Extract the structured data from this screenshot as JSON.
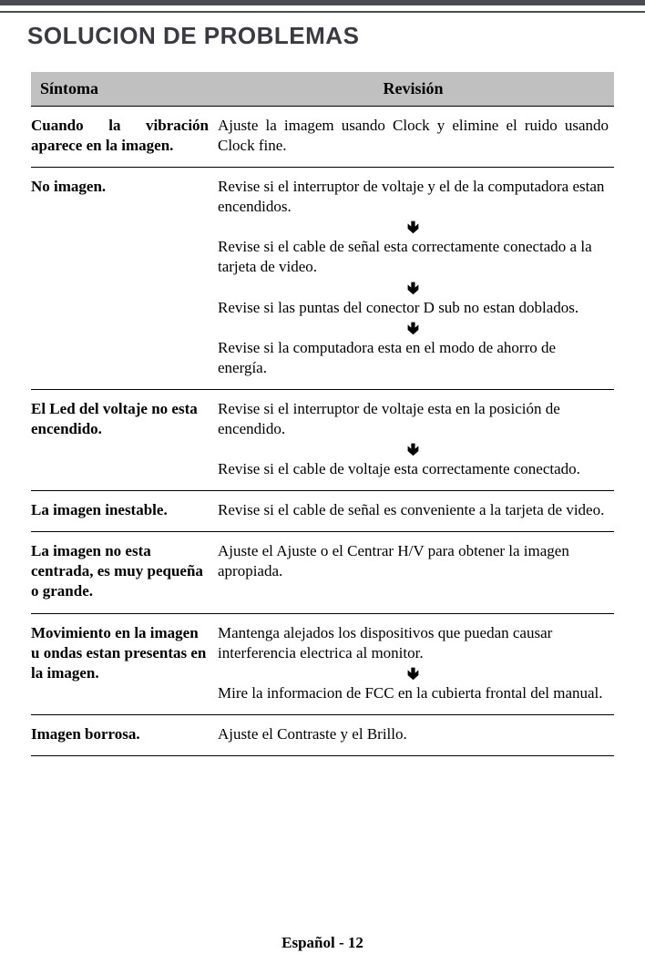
{
  "title": "SOLUCION DE PROBLEMAS",
  "headers": {
    "symptom": "Síntoma",
    "revision": "Revisión"
  },
  "rows": [
    {
      "symptom": "Cuando la vibración aparece en la imagen.",
      "symptom_justify": true,
      "steps": [
        "Ajuste la imagem usando Clock y elimine el ruido usando Clock fine."
      ],
      "justify_first": true,
      "arrows_between": false
    },
    {
      "symptom": "No imagen.",
      "steps": [
        "Revise si el interruptor de voltaje y el de la computadora estan encendidos.",
        "Revise si el cable de señal esta correctamente conectado a la  tarjeta de video.",
        "Revise si las puntas del conector D sub no estan doblados.",
        "Revise si la computadora esta en el modo de ahorro de energía."
      ],
      "arrows_between": true
    },
    {
      "symptom": "El Led del voltaje no esta encendido.",
      "steps": [
        "Revise si el interruptor de voltaje esta en la posición de encendido.",
        "Revise si el cable de voltaje esta correctamente conectado."
      ],
      "arrows_between": true
    },
    {
      "symptom": "La imagen inestable.",
      "steps": [
        "Revise si el cable de señal es conveniente a la tarjeta de video."
      ],
      "arrows_between": false
    },
    {
      "symptom": "La imagen no esta centrada, es muy pequeña o grande.",
      "steps": [
        "Ajuste el Ajuste o el Centrar H/V para obtener la imagen apropiada."
      ],
      "arrows_between": false
    },
    {
      "symptom": "Movimiento en la imagen u ondas  estan presentas en la imagen.",
      "steps": [
        "Mantenga alejados los dispositivos que puedan causar  interferencia electrica al monitor.",
        "Mire la informacion de FCC en la cubierta frontal del manual."
      ],
      "arrows_between": true
    },
    {
      "symptom": "Imagen borrosa.",
      "steps": [
        "Ajuste el Contraste y el Brillo."
      ],
      "arrows_between": false
    }
  ],
  "arrow_glyph": "🢃",
  "footer": "Español - 12",
  "colors": {
    "header_bg": "#c0c0c0",
    "text": "#000000",
    "title": "#3a3a42",
    "rule": "#4a4a52"
  }
}
